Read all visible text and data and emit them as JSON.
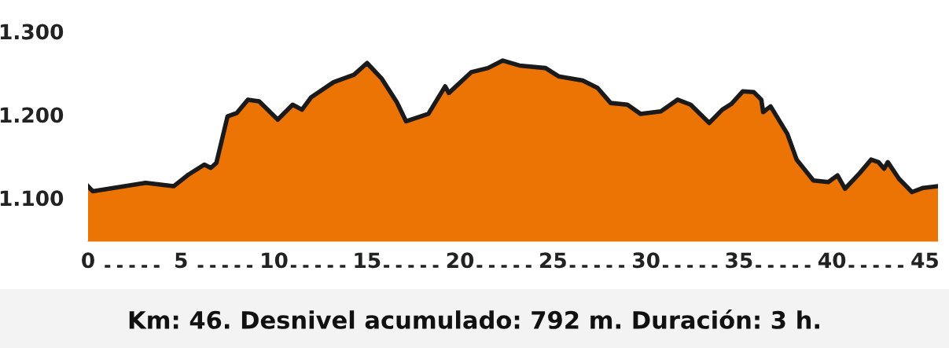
{
  "chart_data": {
    "type": "area",
    "xlim": [
      0,
      45.7
    ],
    "ylim": [
      1048,
      1300
    ],
    "xticks": [
      0,
      5,
      10,
      15,
      20,
      25,
      30,
      35,
      40,
      45
    ],
    "yticks": [
      {
        "value": 1100,
        "label": "1.100"
      },
      {
        "value": 1200,
        "label": "1.200"
      },
      {
        "value": 1300,
        "label": "1.300"
      }
    ],
    "grid": false,
    "legend": false,
    "series": [
      {
        "color": "#ec7404",
        "x": [
          0,
          0.25,
          3.1,
          4.6,
          5.4,
          6.25,
          6.6,
          6.9,
          7.5,
          8.0,
          8.6,
          9.2,
          10.2,
          11.0,
          11.5,
          12.0,
          13.2,
          14.3,
          15.0,
          15.8,
          16.6,
          17.1,
          18.3,
          19.2,
          19.4,
          20.6,
          21.5,
          22.3,
          23.2,
          24.6,
          25.3,
          26.6,
          27.4,
          28.1,
          29.0,
          29.7,
          30.8,
          31.7,
          32.4,
          33.4,
          34.1,
          34.6,
          35.2,
          35.8,
          36.2,
          36.3,
          36.7,
          37.6,
          38.1,
          39.0,
          39.8,
          40.3,
          40.7,
          41.5,
          42.1,
          42.5,
          42.8,
          43.0,
          43.6,
          44.3,
          44.9,
          45.7
        ],
        "values": [
          1114,
          1108,
          1118,
          1114,
          1128,
          1140,
          1136,
          1142,
          1198,
          1202,
          1218,
          1216,
          1194,
          1212,
          1206,
          1221,
          1239,
          1248,
          1262,
          1243,
          1215,
          1192,
          1201,
          1234,
          1226,
          1251,
          1256,
          1265,
          1259,
          1256,
          1246,
          1241,
          1232,
          1214,
          1212,
          1201,
          1204,
          1218,
          1212,
          1190,
          1206,
          1213,
          1228,
          1227,
          1218,
          1203,
          1210,
          1177,
          1146,
          1121,
          1119,
          1127,
          1111,
          1130,
          1146,
          1143,
          1135,
          1143,
          1123,
          1107,
          1112,
          1114
        ]
      }
    ],
    "annotations": [
      "Km: 46. Desnivel acumulado: 792 m. Duración: 3 h."
    ]
  }
}
